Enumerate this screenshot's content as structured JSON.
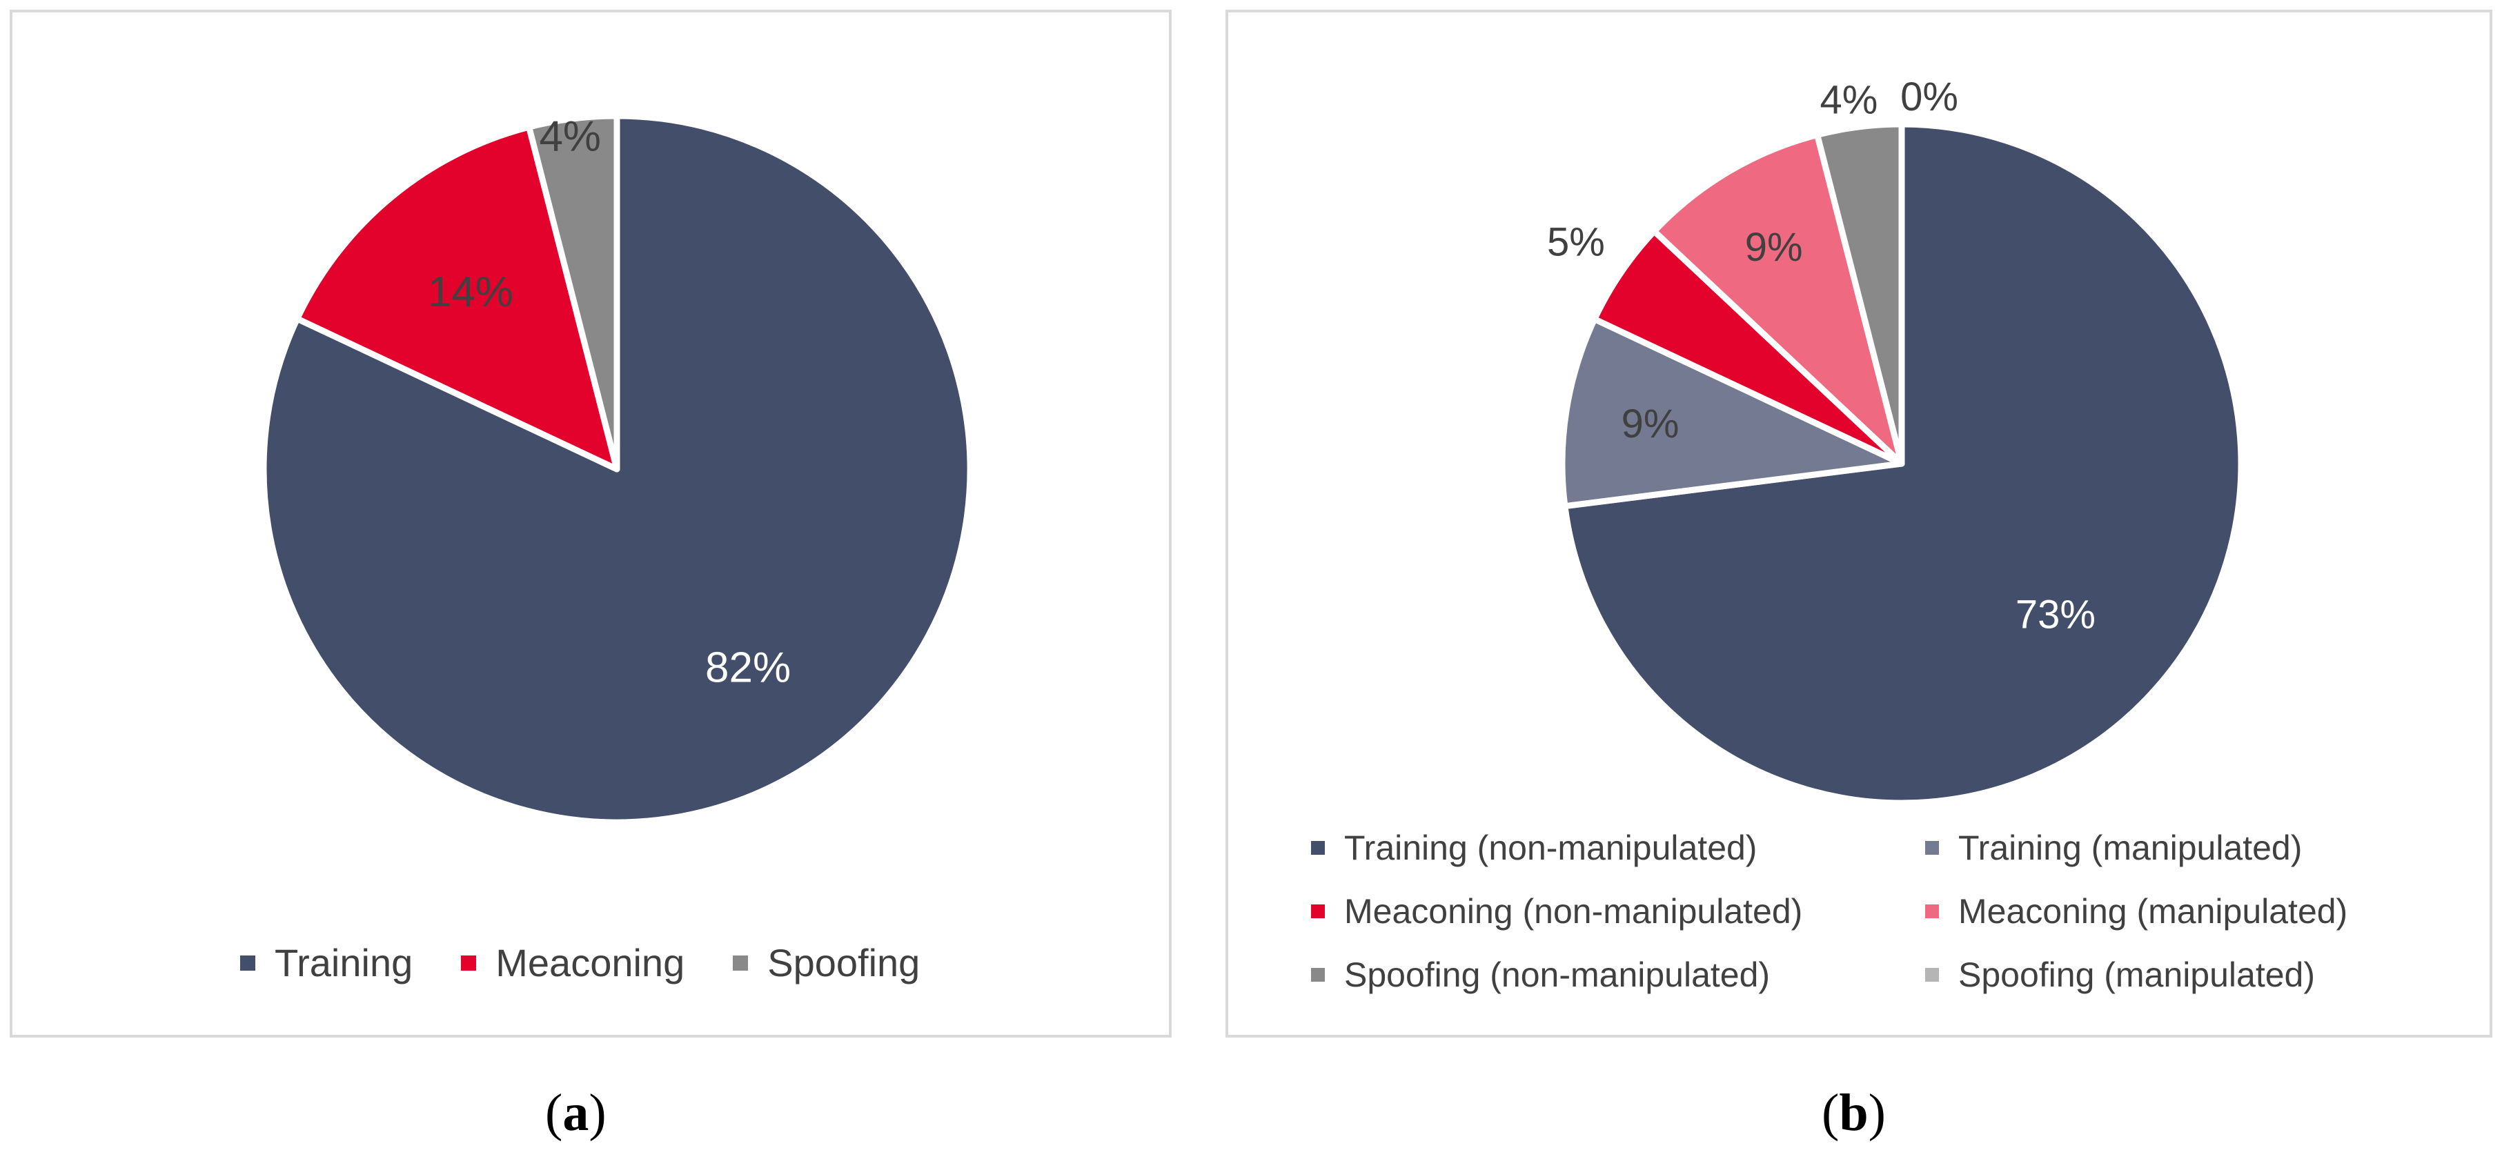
{
  "chart_data": [
    {
      "type": "pie",
      "title": "",
      "labels": [
        "Training",
        "Meaconing",
        "Spoofing"
      ],
      "values": [
        82,
        14,
        4
      ],
      "data_labels": [
        "82%",
        "14%",
        "4%"
      ],
      "colors": [
        "#434E6B",
        "#E2022B",
        "#898989"
      ],
      "label_colors": [
        "#ffffff",
        "#404040",
        "#404040"
      ],
      "legend": {
        "position": "bottom",
        "entries": [
          "Training",
          "Meaconing",
          "Spoofing"
        ]
      }
    },
    {
      "type": "pie",
      "title": "",
      "labels": [
        "Training (non-manipulated)",
        "Training (manipulated)",
        "Meaconing (non-manipulated)",
        "Meaconing (manipulated)",
        "Spoofing (non-manipulated)",
        "Spoofing (manipulated)"
      ],
      "values": [
        73,
        9,
        5,
        9,
        4,
        0
      ],
      "data_labels": [
        "73%",
        "9%",
        "5%",
        "9%",
        "4%",
        "0%"
      ],
      "colors": [
        "#434E6B",
        "#737A91",
        "#E2022B",
        "#EF6A80",
        "#898989",
        "#B5B5B5"
      ],
      "label_colors": [
        "#ffffff",
        "#404040",
        "#404040",
        "#404040",
        "#404040",
        "#404040"
      ],
      "legend": {
        "position": "bottom",
        "entries": [
          "Training (non-manipulated)",
          "Training (manipulated)",
          "Meaconing (non-manipulated)",
          "Meaconing (manipulated)",
          "Spoofing (non-manipulated)",
          "Spoofing (manipulated)"
        ]
      }
    }
  ],
  "captions": {
    "a": "a",
    "b": "b"
  }
}
